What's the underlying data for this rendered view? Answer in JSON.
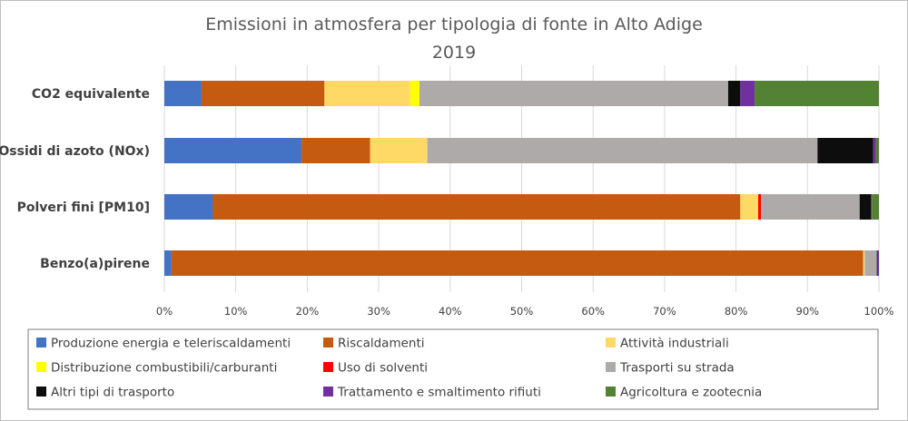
{
  "chart_data": {
    "type": "bar",
    "orientation": "horizontal",
    "stacked": "percent",
    "title": "Emissioni in atmosfera per tipologia di fonte in Alto Adige",
    "subtitle": "2019",
    "categories": [
      "CO2 equivalente",
      "Ossidi di azoto (NOx)",
      "Polveri fini [PM10]",
      "Benzo(a)pirene"
    ],
    "xlim": [
      0,
      100
    ],
    "x_ticks": [
      "0%",
      "10%",
      "20%",
      "30%",
      "40%",
      "50%",
      "60%",
      "70%",
      "80%",
      "90%",
      "100%"
    ],
    "grid": "vertical",
    "legend_position": "bottom",
    "series": [
      {
        "name": "Produzione energia e teleriscaldamenti",
        "color": "#4472c4",
        "values": [
          5.2,
          19.2,
          6.8,
          1.0
        ]
      },
      {
        "name": "Riscaldamenti",
        "color": "#c55a11",
        "values": [
          17.2,
          9.6,
          73.8,
          96.8
        ]
      },
      {
        "name": "Attività industriali",
        "color": "#ffd966",
        "values": [
          12.0,
          8.0,
          2.4,
          0.2
        ]
      },
      {
        "name": "Distribuzione combustibili/carburanti",
        "color": "#ffff00",
        "values": [
          1.3,
          0.0,
          0.1,
          0.0
        ]
      },
      {
        "name": "Uso di solventi",
        "color": "#ff0000",
        "values": [
          0.0,
          0.0,
          0.4,
          0.0
        ]
      },
      {
        "name": "Trasporti su strada",
        "color": "#aeaaaa",
        "values": [
          43.2,
          54.6,
          13.8,
          1.7
        ]
      },
      {
        "name": "Altri tipi di trasporto",
        "color": "#0d0d0d",
        "values": [
          1.7,
          7.8,
          1.6,
          0.1
        ]
      },
      {
        "name": "Trattamento e smaltimento rifiuti",
        "color": "#7030a0",
        "values": [
          2.0,
          0.4,
          0.1,
          0.2
        ]
      },
      {
        "name": "Agricoltura e zootecnia",
        "color": "#548235",
        "values": [
          17.4,
          0.4,
          1.0,
          0.0
        ]
      }
    ]
  }
}
